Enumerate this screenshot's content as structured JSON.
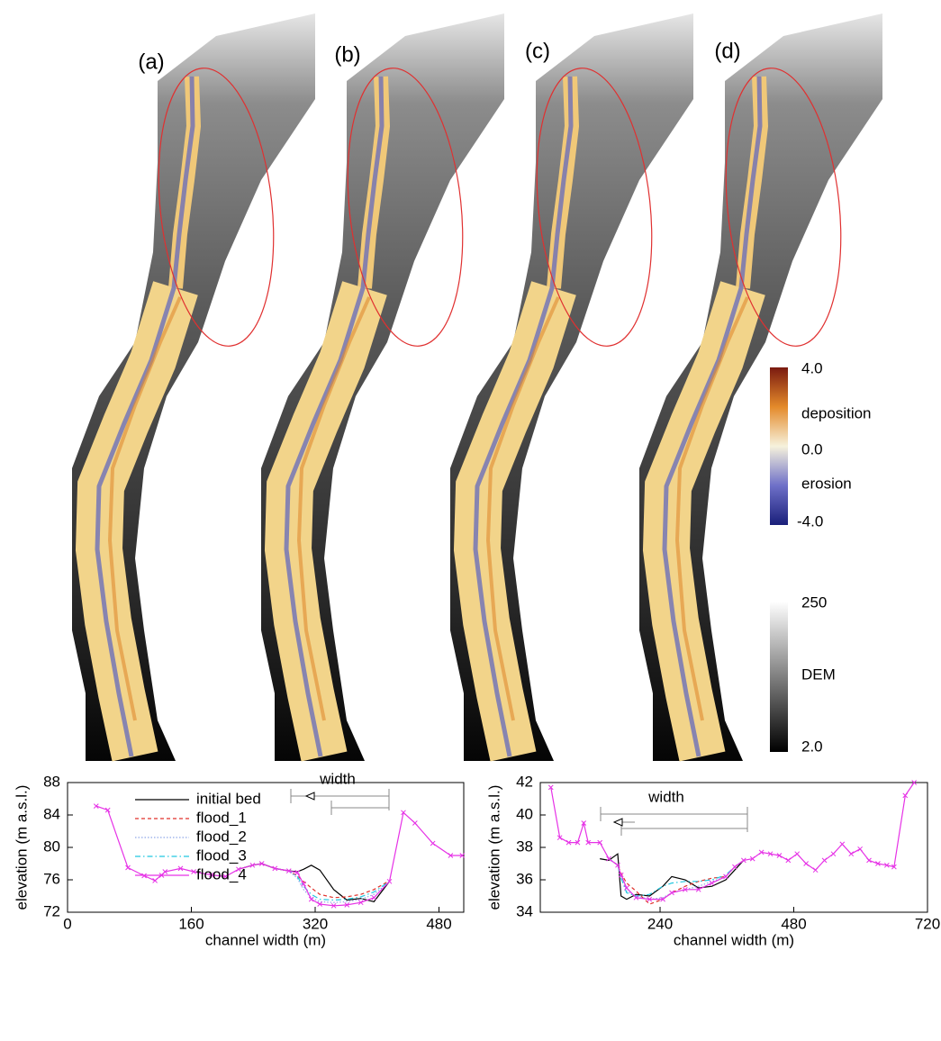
{
  "panels": [
    "(a)",
    "(b)",
    "(c)",
    "(d)"
  ],
  "colorbars": {
    "change": [
      "4.0",
      "deposition",
      "0.0",
      "erosion",
      "-4.0"
    ],
    "dem": [
      "250",
      "DEM",
      "2.0"
    ]
  },
  "chart_data": [
    {
      "type": "line",
      "xlabel": "channel width (m)",
      "ylabel": "elevation (m a.s.l.)",
      "xlim": [
        0,
        512
      ],
      "xticks": [
        0,
        160,
        320,
        480
      ],
      "ylim": [
        72,
        88
      ],
      "yticks": [
        72,
        76,
        80,
        84,
        88
      ],
      "legend": "upper left",
      "annotations": [
        "width"
      ],
      "x": [
        37,
        52,
        78,
        99,
        113,
        126,
        146,
        163,
        186,
        204,
        221,
        239,
        251,
        268,
        286,
        297,
        305,
        315,
        326,
        344,
        361,
        379,
        396,
        416,
        434,
        449,
        472,
        495,
        510
      ],
      "series": [
        {
          "name": "initial bed",
          "color": "#000000",
          "dash": "solid",
          "values": [
            null,
            null,
            null,
            null,
            null,
            null,
            null,
            null,
            null,
            null,
            77.3,
            77.8,
            78,
            77.4,
            77.1,
            77.0,
            77.3,
            77.8,
            77.2,
            74.8,
            73.5,
            73.7,
            73.3,
            75.8,
            null,
            null,
            null,
            null,
            null
          ]
        },
        {
          "name": "flood_1",
          "color": "#e0302a",
          "dash": "dashed",
          "values": [
            null,
            null,
            null,
            null,
            null,
            null,
            null,
            null,
            null,
            null,
            null,
            null,
            null,
            77.4,
            77.1,
            76.5,
            75.8,
            75.0,
            74.2,
            73.8,
            73.9,
            74.2,
            74.8,
            75.9,
            null,
            null,
            null,
            null,
            null
          ]
        },
        {
          "name": "flood_2",
          "color": "#8fa8e8",
          "dash": "dotted",
          "values": [
            null,
            null,
            null,
            null,
            null,
            null,
            null,
            null,
            null,
            null,
            null,
            null,
            null,
            77.4,
            77.1,
            76.2,
            74.8,
            73.8,
            73.3,
            73.2,
            73.3,
            73.6,
            74.2,
            75.8,
            null,
            null,
            null,
            null,
            null
          ]
        },
        {
          "name": "flood_3",
          "color": "#22c8e0",
          "dash": "dashdot",
          "values": [
            null,
            null,
            null,
            null,
            null,
            null,
            null,
            null,
            null,
            null,
            null,
            null,
            null,
            77.4,
            77.1,
            76.4,
            75.2,
            74.2,
            73.6,
            73.5,
            73.6,
            73.9,
            74.5,
            75.8,
            null,
            null,
            null,
            null,
            null
          ]
        },
        {
          "name": "flood_4",
          "color": "#e632e6",
          "dash": "solid",
          "marker": "x",
          "values": [
            85.1,
            84.6,
            77.5,
            76.5,
            75.9,
            77,
            77.4,
            77,
            76.6,
            76.4,
            77.3,
            77.8,
            78,
            77.4,
            77.1,
            76.9,
            75.5,
            73.6,
            73,
            72.8,
            72.9,
            73.2,
            73.8,
            75.8,
            84.3,
            83,
            80.5,
            79,
            79
          ]
        }
      ]
    },
    {
      "type": "line",
      "xlabel": "channel width (m)",
      "ylabel": "elevation (m a.s.l.)",
      "xlim": [
        25,
        720
      ],
      "xticks": [
        240,
        480,
        720
      ],
      "ylim": [
        34,
        42
      ],
      "yticks": [
        34,
        36,
        38,
        40,
        42
      ],
      "annotations": [
        "width"
      ],
      "x": [
        44,
        60,
        76,
        92,
        103,
        111,
        132,
        148,
        164,
        170,
        180,
        197,
        221,
        245,
        261,
        285,
        309,
        333,
        358,
        374,
        390,
        406,
        422,
        438,
        454,
        470,
        486,
        502,
        519,
        535,
        551,
        567,
        583,
        599,
        615,
        631,
        647,
        660,
        680,
        696
      ],
      "series": [
        {
          "color": "#000000",
          "dash": "solid",
          "values": [
            null,
            null,
            null,
            null,
            null,
            null,
            37.3,
            37.2,
            37.6,
            35.0,
            34.8,
            35.1,
            35.0,
            35.6,
            36.2,
            36.0,
            35.5,
            35.6,
            36.0,
            36.6,
            37.2,
            null,
            null,
            null,
            null,
            null,
            null,
            null,
            null,
            null,
            null,
            null,
            null,
            null,
            null,
            null,
            null,
            null,
            null,
            null
          ]
        },
        {
          "color": "#e0302a",
          "dash": "dashed",
          "values": [
            null,
            null,
            null,
            null,
            null,
            null,
            null,
            37.3,
            36.9,
            36.4,
            35.8,
            35.3,
            34.5,
            34.8,
            35.2,
            35.6,
            35.9,
            36.1,
            36.2,
            36.8,
            37.2,
            null,
            null,
            null,
            null,
            null,
            null,
            null,
            null,
            null,
            null,
            null,
            null,
            null,
            null,
            null,
            null,
            null,
            null,
            null
          ]
        },
        {
          "color": "#8fa8e8",
          "dash": "dotted",
          "values": [
            null,
            null,
            null,
            null,
            null,
            null,
            null,
            37.3,
            36.9,
            36.2,
            35.3,
            35.0,
            34.8,
            34.9,
            35.2,
            35.4,
            35.6,
            35.9,
            36.2,
            36.8,
            37.2,
            null,
            null,
            null,
            null,
            null,
            null,
            null,
            null,
            null,
            null,
            null,
            null,
            null,
            null,
            null,
            null,
            null,
            null,
            null
          ]
        },
        {
          "color": "#22c8e0",
          "dash": "dashdot",
          "values": [
            null,
            null,
            null,
            null,
            null,
            null,
            null,
            37.3,
            36.9,
            36.1,
            35.2,
            35.0,
            35.1,
            35.6,
            35.8,
            35.9,
            35.9,
            36.0,
            36.3,
            36.8,
            37.2,
            null,
            null,
            null,
            null,
            null,
            null,
            null,
            null,
            null,
            null,
            null,
            null,
            null,
            null,
            null,
            null,
            null,
            null,
            null
          ]
        },
        {
          "color": "#e632e6",
          "dash": "solid",
          "marker": "x",
          "values": [
            41.7,
            38.6,
            38.3,
            38.3,
            39.5,
            38.3,
            38.3,
            37.3,
            36.9,
            36.3,
            35.5,
            34.9,
            34.8,
            34.8,
            35.2,
            35.4,
            35.4,
            35.8,
            36.2,
            36.8,
            37.2,
            37.3,
            37.7,
            37.6,
            37.5,
            37.2,
            37.6,
            37.0,
            36.6,
            37.2,
            37.6,
            38.2,
            37.6,
            37.9,
            37.2,
            37.0,
            36.9,
            36.8,
            41.2,
            42.0
          ]
        }
      ]
    }
  ]
}
